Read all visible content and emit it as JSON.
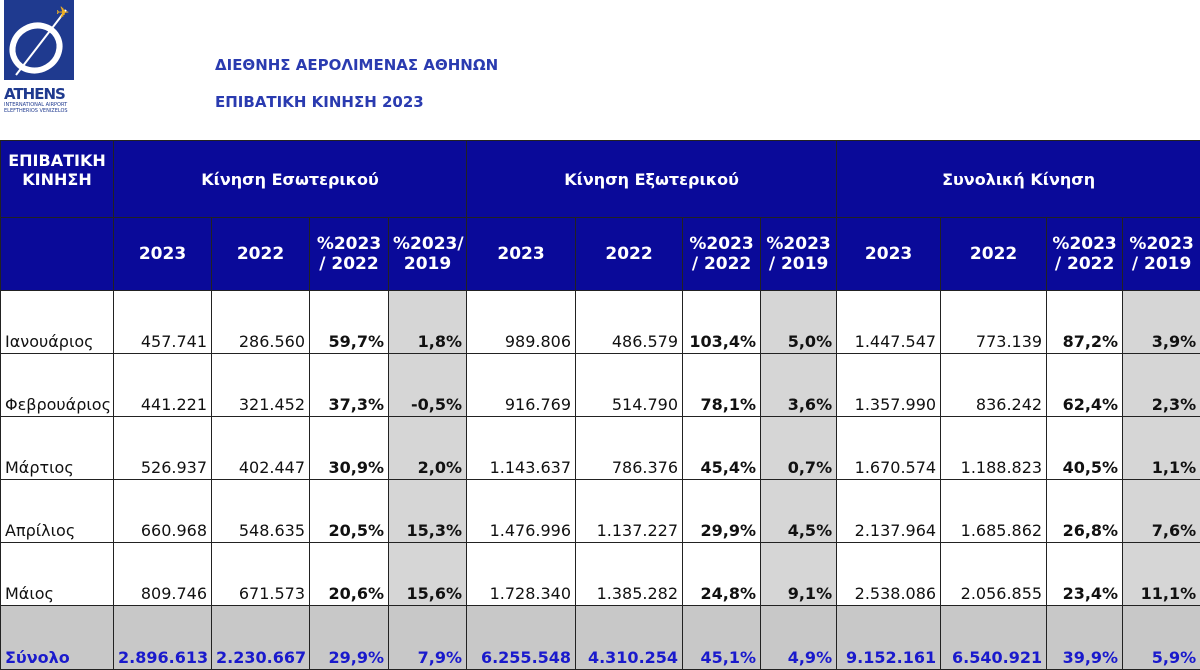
{
  "logo": {
    "name": "ATHENS",
    "sub1": "INTERNATIONAL AIRPORT",
    "sub2": "ELEFTHERIOS VENIZELOS"
  },
  "title1": "ΔΙΕΘΝΗΣ ΑΕΡΟΛΙΜΕΝΑΣ ΑΘΗΝΩΝ",
  "title2": "ΕΠΙΒΑΤΙΚΗ ΚΙΝΗΣΗ 2023",
  "header": {
    "corner": "ΕΠΙΒΑΤΙΚΗ ΚΙΝΗΣΗ",
    "groups": [
      "Κίνηση Εσωτερικού",
      "Κίνηση Εξωτερικού",
      "Συνολική Κίνηση"
    ],
    "cols": [
      "2023",
      "2022",
      "%2023 / 2022",
      "%2023/ 2019",
      "2023",
      "2022",
      "%2023 / 2022",
      "%2023 / 2019",
      "2023",
      "2022",
      "%2023 / 2022",
      "%2023 / 2019"
    ]
  },
  "rows": [
    [
      "Ιανουάριος",
      "457.741",
      "286.560",
      "59,7%",
      "1,8%",
      "989.806",
      "486.579",
      "103,4%",
      "5,0%",
      "1.447.547",
      "773.139",
      "87,2%",
      "3,9%"
    ],
    [
      "Φεβρουάριος",
      "441.221",
      "321.452",
      "37,3%",
      "-0,5%",
      "916.769",
      "514.790",
      "78,1%",
      "3,6%",
      "1.357.990",
      "836.242",
      "62,4%",
      "2,3%"
    ],
    [
      "Μάρτιος",
      "526.937",
      "402.447",
      "30,9%",
      "2,0%",
      "1.143.637",
      "786.376",
      "45,4%",
      "0,7%",
      "1.670.574",
      "1.188.823",
      "40,5%",
      "1,1%"
    ],
    [
      "Απρίλιος",
      "660.968",
      "548.635",
      "20,5%",
      "15,3%",
      "1.476.996",
      "1.137.227",
      "29,9%",
      "4,5%",
      "2.137.964",
      "1.685.862",
      "26,8%",
      "7,6%"
    ],
    [
      "Μάιος",
      "809.746",
      "671.573",
      "20,6%",
      "15,6%",
      "1.728.340",
      "1.385.282",
      "24,8%",
      "9,1%",
      "2.538.086",
      "2.056.855",
      "23,4%",
      "11,1%"
    ]
  ],
  "total": [
    "Σύνολο",
    "2.896.613",
    "2.230.667",
    "29,9%",
    "7,9%",
    "6.255.548",
    "4.310.254",
    "45,1%",
    "4,9%",
    "9.152.161",
    "6.540.921",
    "39,9%",
    "5,9%"
  ]
}
